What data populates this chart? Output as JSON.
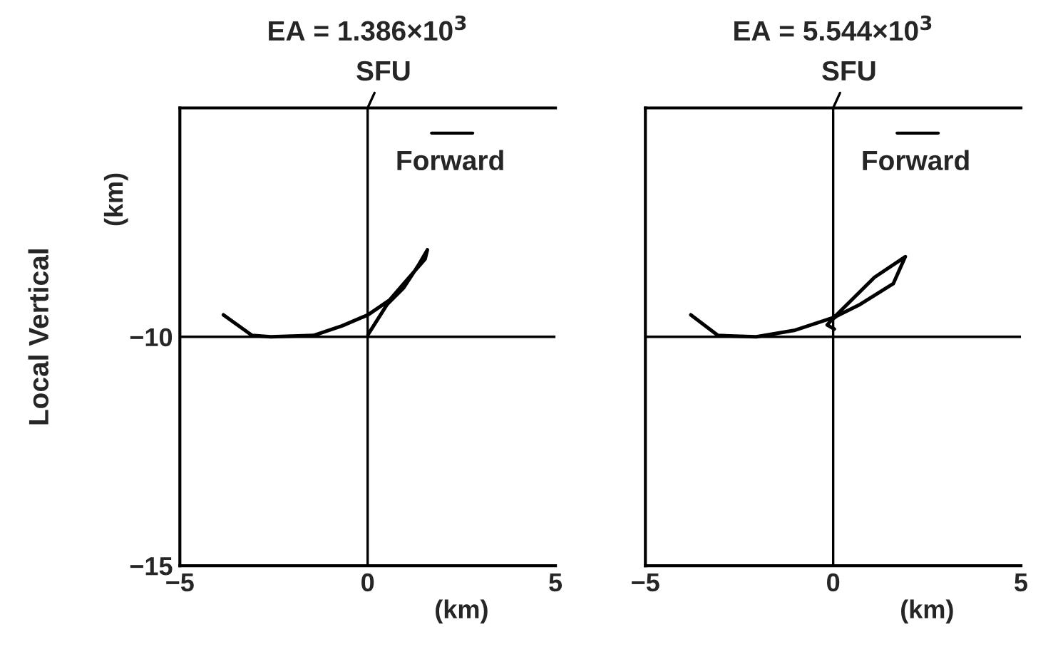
{
  "chart_data": [
    {
      "type": "line",
      "title": "EA = 1.386×10$^{3}$",
      "xlabel": "(km)",
      "ylabel": "Local Vertical",
      "x": [
        0.01,
        0.52,
        0.96,
        1.34,
        1.59,
        1.53,
        0.96,
        0.58,
        0.01,
        -0.68,
        -1.44,
        -2.58,
        -3.08,
        -3.84
      ],
      "series": [
        {
          "color": "#000000",
          "values": [
            -9.95,
            -9.29,
            -8.93,
            -8.45,
            -8.1,
            -8.3,
            -8.84,
            -9.2,
            -9.52,
            -9.76,
            -9.97,
            -10.0,
            -9.97,
            -9.52
          ]
        }
      ],
      "xlim": [
        -5,
        5
      ],
      "ylim": [
        -15,
        -5
      ],
      "xticks": [
        -5,
        0,
        5
      ],
      "yticks": [
        -10,
        -15
      ],
      "ref_lines": [
        {
          "axis": "x",
          "value": 0,
          "label": null
        },
        {
          "axis": "y",
          "value": -10,
          "label": null
        }
      ],
      "annotations": [
        {
          "text": "SFU",
          "x": 0,
          "y": -5
        },
        "Forward",
        "(km)"
      ],
      "grid": false,
      "marker": "none",
      "line_style": "solid"
    },
    {
      "type": "line",
      "title": "EA = 5.544×10$^{3}$",
      "xlabel": "(km)",
      "x": [
        0.03,
        -0.16,
        -0.03,
        0.09,
        0.72,
        1.6,
        1.92,
        1.1,
        0.09,
        -0.03,
        -1.04,
        -2.05,
        -3.07,
        -3.79
      ],
      "series": [
        {
          "color": "#000000",
          "values": [
            -9.83,
            -9.74,
            -9.62,
            -9.55,
            -9.29,
            -8.84,
            -8.25,
            -8.7,
            -9.52,
            -9.59,
            -9.86,
            -10.0,
            -9.97,
            -9.52
          ]
        }
      ],
      "xlim": [
        -5,
        5
      ],
      "ylim": [
        -15,
        -5
      ],
      "xticks": [
        -5,
        0,
        5
      ],
      "yticks": [
        -10,
        -15
      ],
      "tick_labels": "x",
      "ref_lines": [
        {
          "axis": "x",
          "value": 0,
          "label": null
        },
        {
          "axis": "y",
          "value": -10,
          "label": null
        }
      ],
      "annotations": [
        {
          "text": "SFU",
          "x": 0,
          "y": -5
        },
        "Forward"
      ],
      "grid": false,
      "marker": "none",
      "line_style": "solid"
    }
  ]
}
